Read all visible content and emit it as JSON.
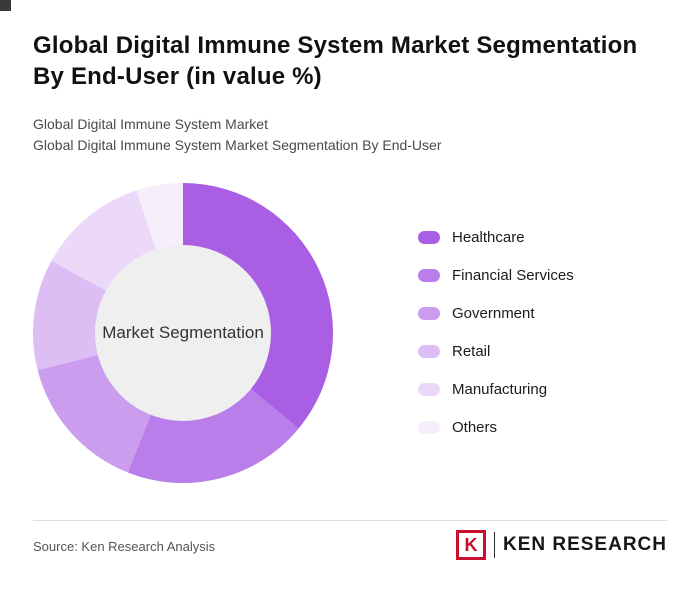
{
  "header": {
    "title_line1": "Global Digital Immune System Market Segmentation",
    "title_line2": "By End-User (in value %)",
    "subtitle_line1": "Global Digital Immune System Market",
    "subtitle_line2": "Global Digital Immune System Market Segmentation By End-User"
  },
  "chart_data": {
    "type": "pie",
    "variant": "donut",
    "title": "Global Digital Immune System Market Segmentation By End-User (in value %)",
    "categories": [
      "Healthcare",
      "Financial Services",
      "Government",
      "Retail",
      "Manufacturing",
      "Others"
    ],
    "values": [
      36,
      20,
      15,
      12,
      12,
      5
    ],
    "colors": [
      "#a95ee4",
      "#b97ee9",
      "#ca9def",
      "#dcbdf4",
      "#ecd9f9",
      "#f7eefc"
    ],
    "center_label": "Market Segmentation",
    "center_fill": "#efefef",
    "legend_position": "right",
    "start_angle_deg": -90,
    "direction": "clockwise"
  },
  "footer": {
    "source": "Source: Ken Research Analysis",
    "logo": {
      "letter": "K",
      "brand": "KEN RESEARCH",
      "accent_color": "#c8102e"
    }
  }
}
